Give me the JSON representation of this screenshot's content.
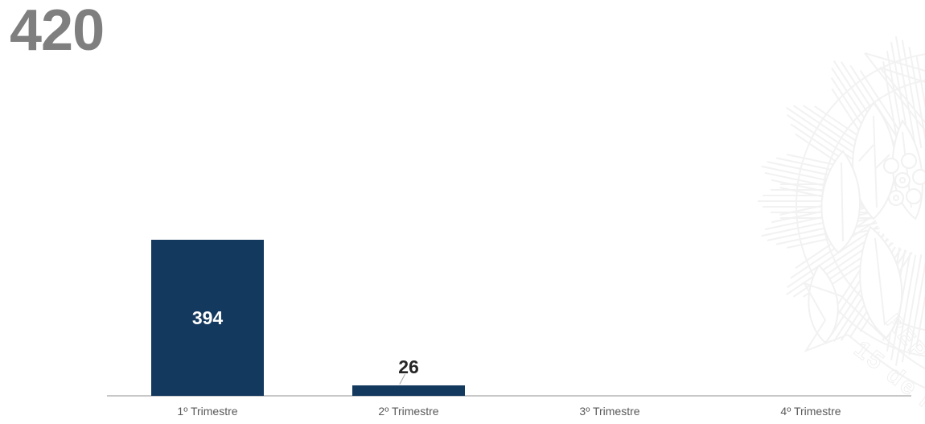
{
  "title": {
    "text": "420",
    "color": "#7f7f7f"
  },
  "chart_data": {
    "type": "bar",
    "title": "420",
    "categories": [
      "1º Trimestre",
      "2º Trimestre",
      "3º Trimestre",
      "4º Trimestre"
    ],
    "values": [
      394,
      26,
      0,
      0
    ],
    "data_labels": [
      "394",
      "26",
      "",
      ""
    ],
    "xlabel": "",
    "ylabel": "",
    "ylim": [
      0,
      420
    ],
    "grid": false,
    "legend": false,
    "axis_lines": "bottom-only",
    "bar_color": "#14395e",
    "axis_line_color": "#c8c8c8",
    "category_label_color": "#595959",
    "value_label_inside_color": "#ffffff",
    "value_label_outside_color": "#262626",
    "leader_line_color": "#a6a6a6"
  },
  "watermark": {
    "icon": "coat-of-arms-watermark",
    "text_fragments": {
      "ribbon": "15 de No",
      "ring": "REP"
    },
    "stroke_color": "#f2f2f2"
  }
}
